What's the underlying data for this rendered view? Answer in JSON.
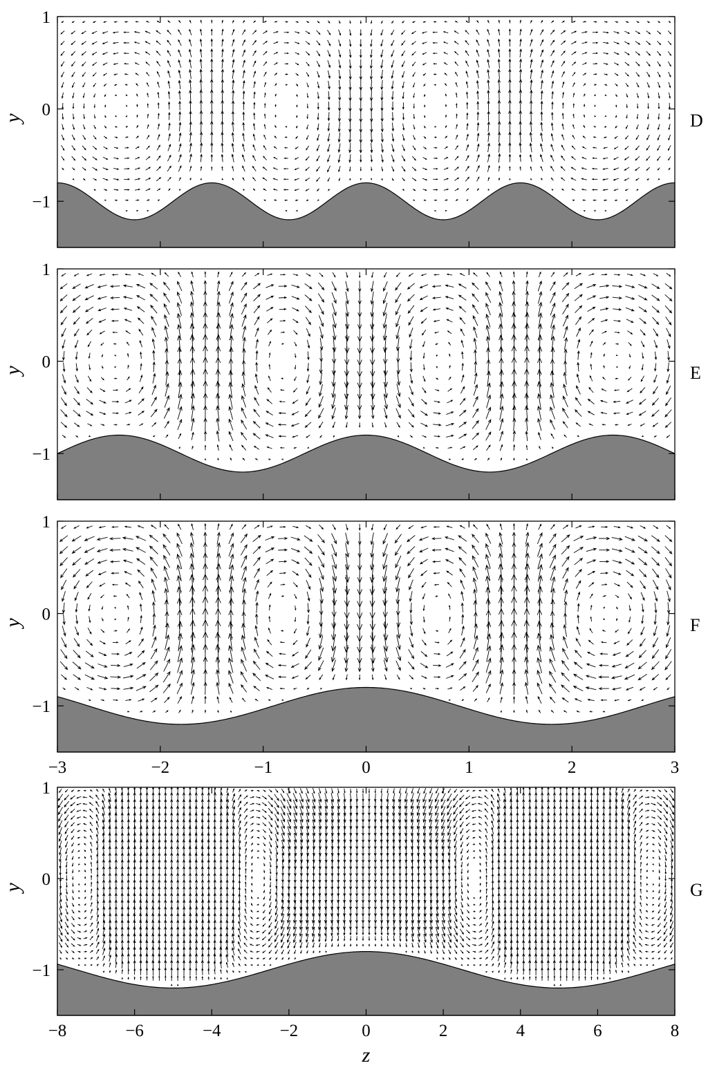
{
  "chart_data": [
    {
      "type": "quiver",
      "panel_label": "D",
      "xlim": [
        -3,
        3
      ],
      "ylim": [
        -1.5,
        1
      ],
      "ylabel": "y",
      "yticks": [
        -1,
        0,
        1
      ],
      "ytick_labels": [
        "−1",
        "0",
        "1"
      ],
      "xticks": [
        -3,
        -2,
        -1,
        0,
        1,
        2,
        3
      ],
      "xtick_labels": [],
      "wall": {
        "mean": -1,
        "amplitude": 0.2,
        "wavelength": 1.5,
        "phase_crest_z": 0,
        "fill": "#7f7f7f"
      },
      "vortex_centers_z": [
        -2.2,
        -0.8,
        0.7,
        2.1
      ],
      "vortex_center_y": 0.0,
      "arrow_grid": {
        "nz": 58,
        "ny": 22,
        "scale": 1.0
      }
    },
    {
      "type": "quiver",
      "panel_label": "E",
      "xlim": [
        -3,
        3
      ],
      "ylim": [
        -1.5,
        1
      ],
      "ylabel": "y",
      "yticks": [
        -1,
        0,
        1
      ],
      "ytick_labels": [
        "−1",
        "0",
        "1"
      ],
      "xticks": [
        -3,
        -2,
        -1,
        0,
        1,
        2,
        3
      ],
      "xtick_labels": [],
      "wall": {
        "mean": -1,
        "amplitude": 0.2,
        "wavelength": 2.4,
        "phase_crest_z": 0,
        "fill": "#7f7f7f"
      },
      "vortex_centers_z": [
        -2.3,
        -0.8,
        0.7,
        2.3
      ],
      "vortex_center_y": 0.0,
      "arrow_grid": {
        "nz": 48,
        "ny": 20,
        "scale": 1.4
      }
    },
    {
      "type": "quiver",
      "panel_label": "F",
      "xlim": [
        -3,
        3
      ],
      "ylim": [
        -1.5,
        1
      ],
      "ylabel": "y",
      "yticks": [
        -1,
        0,
        1
      ],
      "ytick_labels": [
        "−1",
        "0",
        "1"
      ],
      "xticks": [
        -3,
        -2,
        -1,
        0,
        1,
        2,
        3
      ],
      "xtick_labels": [
        "−3",
        "−2",
        "−1",
        "0",
        "1",
        "2",
        "3"
      ],
      "wall": {
        "mean": -1,
        "amplitude": 0.2,
        "wavelength": 3.6,
        "phase_crest_z": 0,
        "fill": "#7f7f7f"
      },
      "vortex_centers_z": [
        -2.3,
        -0.8,
        0.7,
        2.2
      ],
      "vortex_center_y": 0.0,
      "arrow_grid": {
        "nz": 48,
        "ny": 20,
        "scale": 1.6
      }
    },
    {
      "type": "quiver",
      "panel_label": "G",
      "xlim": [
        -8,
        8
      ],
      "ylim": [
        -1.5,
        1
      ],
      "ylabel": "y",
      "xlabel": "z",
      "yticks": [
        -1,
        0,
        1
      ],
      "ytick_labels": [
        "−1",
        "0",
        "1"
      ],
      "xticks": [
        -8,
        -6,
        -4,
        -2,
        0,
        2,
        4,
        6,
        8
      ],
      "xtick_labels": [
        "−8",
        "−6",
        "−4",
        "−2",
        "0",
        "2",
        "4",
        "6",
        "8"
      ],
      "wall": {
        "mean": -1,
        "amplitude": 0.2,
        "wavelength": 10,
        "phase_crest_z": 0,
        "fill": "#7f7f7f"
      },
      "vortex_centers_z": [
        -5.9,
        -4.3,
        4.3,
        5.9
      ],
      "vortex_center_y": 0.0,
      "arrow_grid": {
        "nz": 100,
        "ny": 34,
        "scale": 1.0
      }
    }
  ]
}
